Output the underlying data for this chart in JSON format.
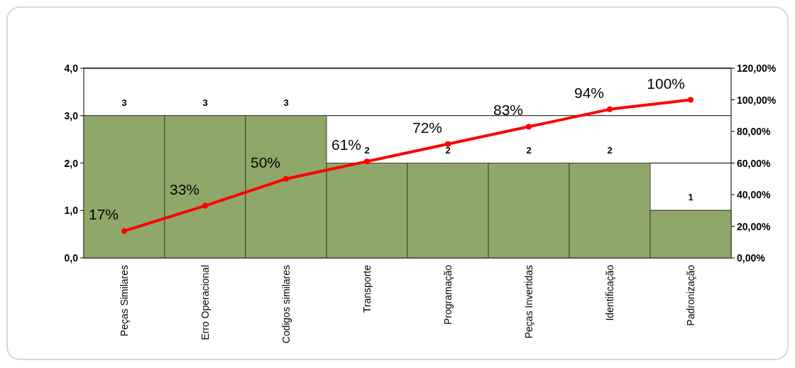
{
  "chart_data": {
    "type": "bar",
    "categories": [
      "Peças Similares",
      "Erro Operacional",
      "Codigos similares",
      "Transporte",
      "Programação",
      "Peças Invertidas",
      "Identificação",
      "Padronização"
    ],
    "series": [
      {
        "color": "#8fa86a",
        "values": [
          3,
          3,
          3,
          2,
          2,
          2,
          2,
          1
        ],
        "value_labels": [
          "3",
          "3",
          "3",
          "2",
          "2",
          "2",
          "2",
          "1"
        ]
      },
      {
        "type": "line",
        "axis": "y2",
        "color": "#ff0000",
        "values": [
          17,
          33,
          50,
          61,
          72,
          83,
          94,
          100
        ],
        "value_labels": [
          "17%",
          "33%",
          "50%",
          "61%",
          "72%",
          "83%",
          "94%",
          "100%"
        ]
      }
    ],
    "ylim": [
      0,
      4
    ],
    "yticks": [
      {
        "value": 0,
        "label": "0,0"
      },
      {
        "value": 1,
        "label": "1,0"
      },
      {
        "value": 2,
        "label": "2,0"
      },
      {
        "value": 3,
        "label": "3,0"
      },
      {
        "value": 4,
        "label": "4,0"
      }
    ],
    "y2lim": [
      0,
      120
    ],
    "y2ticks": [
      {
        "value": 0,
        "label": "0,00%"
      },
      {
        "value": 20,
        "label": "20,00%"
      },
      {
        "value": 40,
        "label": "40,00%"
      },
      {
        "value": 60,
        "label": "60,00%"
      },
      {
        "value": 80,
        "label": "80,00%"
      },
      {
        "value": 100,
        "label": "100,00%"
      },
      {
        "value": 120,
        "label": "120,00%"
      }
    ],
    "grid": "y",
    "marker": "circle",
    "line_style": "solid"
  }
}
